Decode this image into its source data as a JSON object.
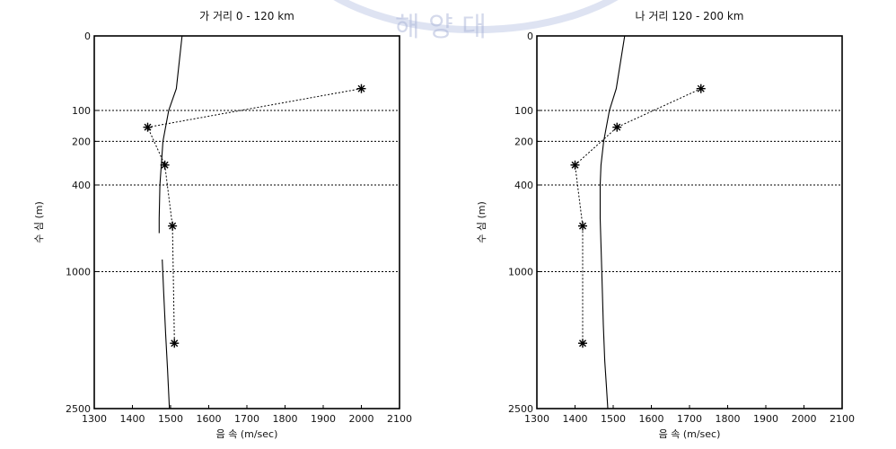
{
  "chart_data": [
    {
      "type": "line",
      "title": "가 거리 0 - 120 km",
      "xlabel": "음 속 (m/sec)",
      "ylabel": "수 심 (m)",
      "xlim": [
        1300,
        2100
      ],
      "ylim": [
        0,
        2500
      ],
      "y_scale": "sqrt",
      "x_ticks": [
        1300,
        1400,
        1500,
        1600,
        1700,
        1800,
        1900,
        2000,
        2100
      ],
      "y_ticks": [
        0,
        100,
        200,
        400,
        1000,
        2500
      ],
      "hlines": [
        100,
        200,
        400,
        1000
      ],
      "series": [
        {
          "style": "solid",
          "x": [
            1530,
            1515,
            1495,
            1480,
            1472,
            1470,
            1470
          ],
          "y": [
            0,
            50,
            100,
            200,
            400,
            600,
            700
          ]
        },
        {
          "style": "solid",
          "x": [
            1478,
            1482,
            1487,
            1492,
            1497
          ],
          "y": [
            900,
            1200,
            1600,
            2000,
            2500
          ]
        },
        {
          "style": "dashed",
          "markers": true,
          "x": [
            2000,
            1440,
            1485,
            1505,
            1510
          ],
          "y": [
            50,
            150,
            300,
            650,
            1700
          ]
        }
      ]
    },
    {
      "type": "line",
      "title": "나 거리 120 - 200 km",
      "xlabel": "음 속 (m/sec)",
      "ylabel": "수 심 (m)",
      "xlim": [
        1300,
        2100
      ],
      "ylim": [
        0,
        2500
      ],
      "y_scale": "sqrt",
      "x_ticks": [
        1300,
        1400,
        1500,
        1600,
        1700,
        1800,
        1900,
        2000,
        2100
      ],
      "y_ticks": [
        0,
        100,
        200,
        400,
        1000,
        2500
      ],
      "hlines": [
        100,
        200,
        400,
        1000
      ],
      "series": [
        {
          "style": "solid",
          "x": [
            1530,
            1508,
            1490,
            1475,
            1468,
            1466,
            1466,
            1470,
            1474,
            1478,
            1482,
            1486
          ],
          "y": [
            0,
            50,
            100,
            200,
            300,
            400,
            600,
            1000,
            1500,
            1900,
            2200,
            2500
          ]
        },
        {
          "style": "dashed",
          "markers": true,
          "x": [
            1730,
            1510,
            1400,
            1420,
            1420
          ],
          "y": [
            50,
            150,
            300,
            650,
            1700
          ]
        }
      ]
    }
  ],
  "watermark": {
    "text": "해 양 대",
    "color": "#aab4d8"
  }
}
